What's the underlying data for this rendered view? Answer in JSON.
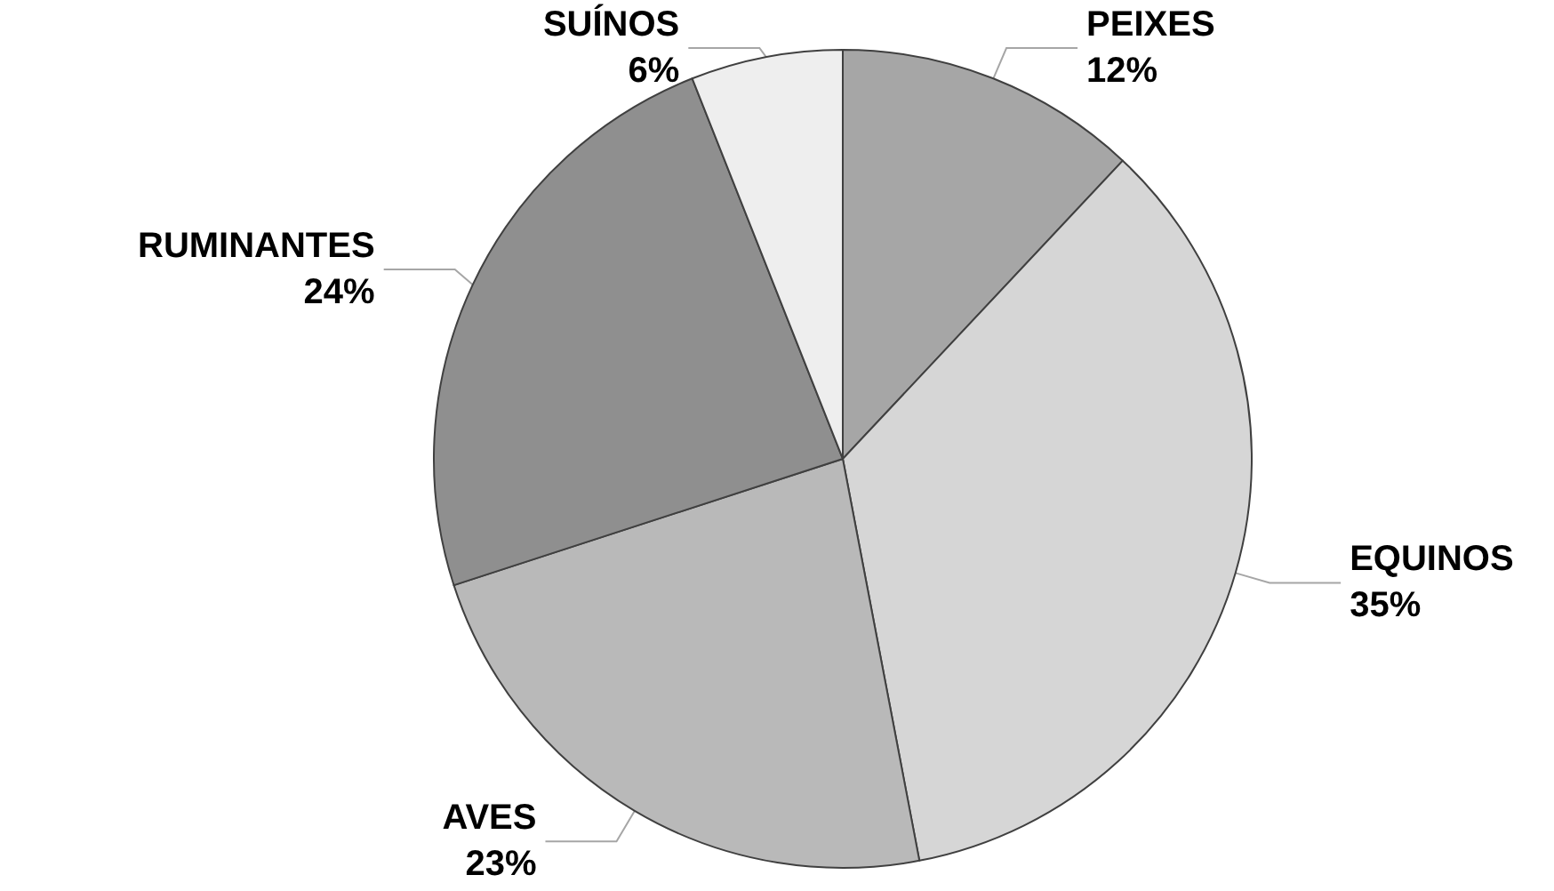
{
  "chart_data": {
    "type": "pie",
    "categories": [
      "PEIXES",
      "EQUINOS",
      "AVES",
      "RUMINANTES",
      "SUÍNOS"
    ],
    "values": [
      12,
      35,
      23,
      24,
      6
    ],
    "colors": [
      "#a6a6a6",
      "#d6d6d6",
      "#b9b9b9",
      "#8f8f8f",
      "#eeeeee"
    ],
    "value_labels": [
      "12%",
      "35%",
      "23%",
      "24%",
      "6%"
    ],
    "legend": false
  }
}
